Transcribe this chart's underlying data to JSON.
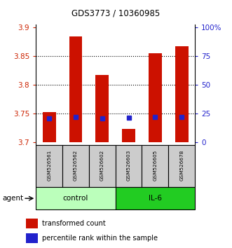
{
  "title": "GDS3773 / 10360985",
  "samples": [
    "GSM526561",
    "GSM526562",
    "GSM526602",
    "GSM526603",
    "GSM526605",
    "GSM526678"
  ],
  "bar_values": [
    3.752,
    3.885,
    3.818,
    3.723,
    3.855,
    3.867
  ],
  "bar_bottom": 3.7,
  "blue_dot_values": [
    3.742,
    3.744,
    3.742,
    3.743,
    3.744,
    3.744
  ],
  "ylim": [
    3.695,
    3.905
  ],
  "yticks": [
    3.7,
    3.75,
    3.8,
    3.85,
    3.9
  ],
  "ytick_labels": [
    "3.7",
    "3.75",
    "3.8",
    "3.85",
    "3.9"
  ],
  "right_ytick_positions": [
    3.7,
    3.75,
    3.8,
    3.85,
    3.9
  ],
  "right_ytick_labels": [
    "0",
    "25",
    "50",
    "75",
    "100%"
  ],
  "bar_color": "#CC1100",
  "blue_dot_color": "#2222CC",
  "control_color": "#BBFFBB",
  "il6_color": "#22CC22",
  "sample_box_color": "#CCCCCC",
  "left_tick_color": "#CC2200",
  "right_tick_color": "#2222CC",
  "bar_width": 0.5,
  "agent_label": "agent",
  "legend_items": [
    "transformed count",
    "percentile rank within the sample"
  ]
}
